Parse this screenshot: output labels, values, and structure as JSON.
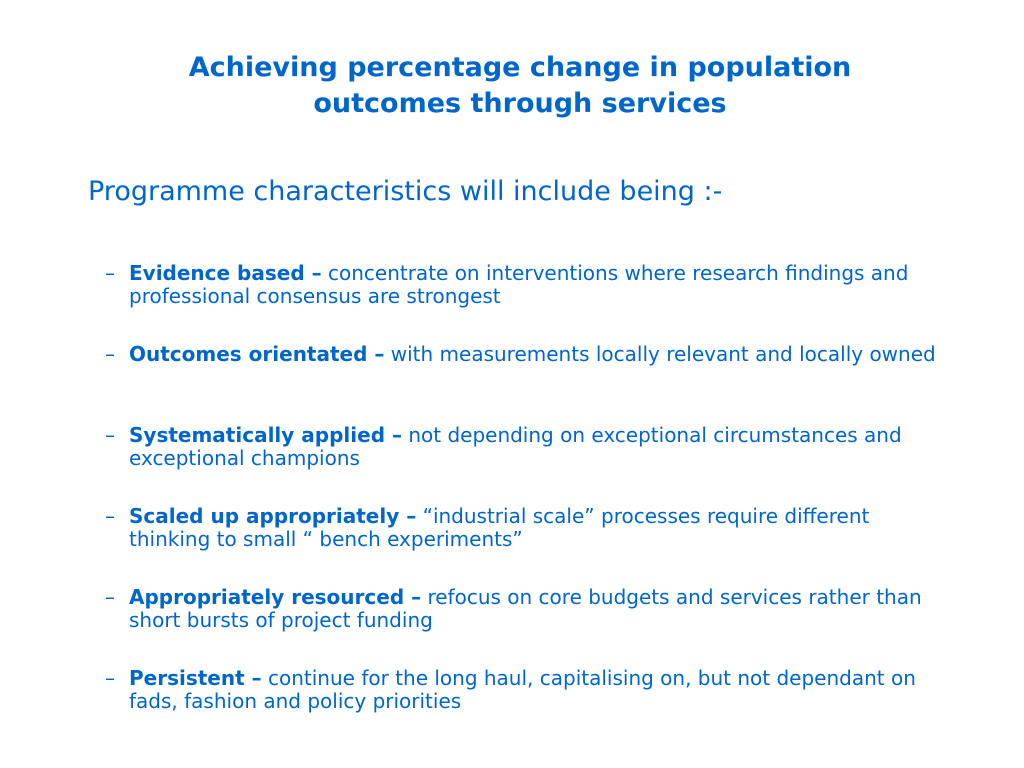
{
  "slide": {
    "title_line1": "Achieving percentage change in population",
    "title_line2": "outcomes through services",
    "subtitle": "Programme characteristics will include being :-",
    "bullets": [
      {
        "dash": "–",
        "term": "Evidence based –",
        "text": " concentrate on interventions where research findings and professional consensus are strongest"
      },
      {
        "dash": "–",
        "term": "Outcomes orientated –",
        "text": " with measurements locally relevant and locally owned"
      },
      {
        "dash": "–",
        "term": "Systematically applied –",
        "text": " not depending on exceptional circumstances and exceptional champions"
      },
      {
        "dash": "–",
        "term": "Scaled up appropriately –",
        "text": " “industrial scale” processes require different thinking to small “ bench experiments”"
      },
      {
        "dash": "–",
        "term": "Appropriately resourced –",
        "text": " refocus on core budgets and services rather than short bursts of project funding"
      },
      {
        "dash": "–",
        "term": "Persistent –",
        "text": " continue for the long haul, capitalising on, but not dependant on fads, fashion and policy priorities"
      }
    ]
  },
  "colors": {
    "text": "#0066cc",
    "background": "#ffffff"
  }
}
